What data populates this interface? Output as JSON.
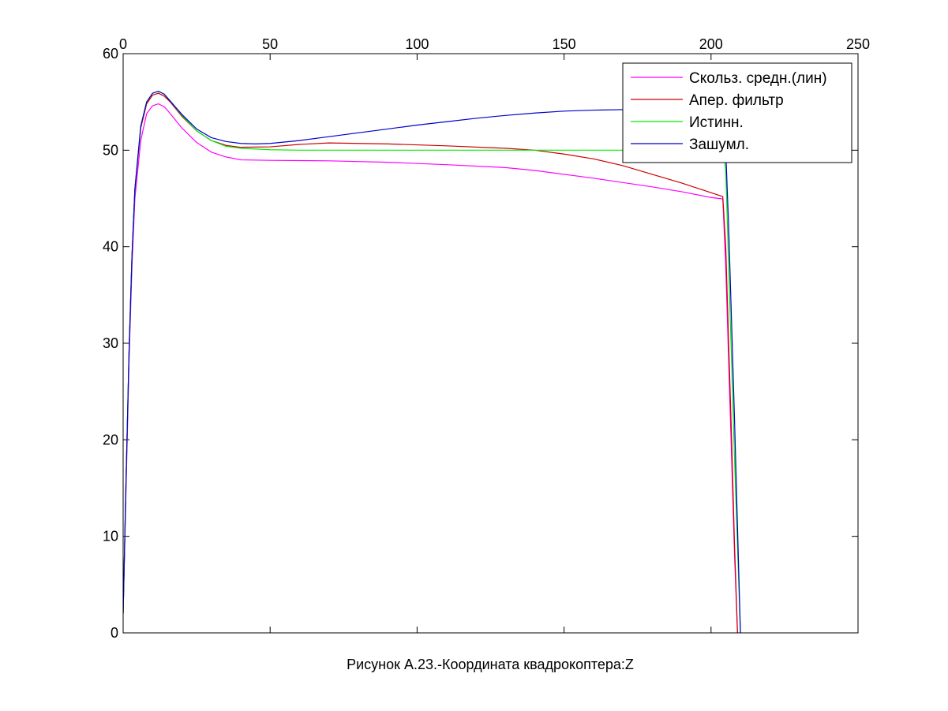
{
  "chart_data": {
    "type": "line",
    "title": "",
    "caption": "Рисунок А.23.-Координата квадрокоптера:Z",
    "xlabel": "",
    "ylabel": "",
    "xlim": [
      0,
      250
    ],
    "ylim": [
      0,
      60
    ],
    "x_ticks": [
      0,
      50,
      100,
      150,
      200,
      250
    ],
    "y_ticks": [
      0,
      10,
      20,
      30,
      40,
      50,
      60
    ],
    "x_tick_position": "top",
    "grid": false,
    "legend_position": "top-right",
    "series": [
      {
        "name": "Скольз. средн.(лин)",
        "color": "#ff00ff",
        "points": [
          [
            0,
            2
          ],
          [
            1,
            15
          ],
          [
            2,
            28
          ],
          [
            3,
            38
          ],
          [
            4,
            45
          ],
          [
            6,
            51
          ],
          [
            8,
            53.8
          ],
          [
            10,
            54.6
          ],
          [
            12,
            54.8
          ],
          [
            14,
            54.5
          ],
          [
            16,
            53.8
          ],
          [
            20,
            52.3
          ],
          [
            25,
            50.8
          ],
          [
            30,
            49.8
          ],
          [
            35,
            49.3
          ],
          [
            40,
            49.0
          ],
          [
            50,
            48.95
          ],
          [
            70,
            48.9
          ],
          [
            90,
            48.75
          ],
          [
            110,
            48.5
          ],
          [
            130,
            48.2
          ],
          [
            140,
            47.9
          ],
          [
            160,
            47.1
          ],
          [
            180,
            46.2
          ],
          [
            190,
            45.7
          ],
          [
            200,
            45.1
          ],
          [
            204,
            44.95
          ],
          [
            205,
            38
          ],
          [
            206,
            28
          ],
          [
            207,
            18
          ],
          [
            208,
            8
          ],
          [
            209,
            0
          ]
        ]
      },
      {
        "name": "Апер. фильтр",
        "color": "#cc0000",
        "points": [
          [
            0,
            2
          ],
          [
            1,
            16
          ],
          [
            2,
            29
          ],
          [
            3,
            39
          ],
          [
            4,
            46
          ],
          [
            6,
            52.3
          ],
          [
            8,
            54.8
          ],
          [
            10,
            55.7
          ],
          [
            12,
            55.9
          ],
          [
            14,
            55.6
          ],
          [
            16,
            55.0
          ],
          [
            20,
            53.5
          ],
          [
            25,
            52.0
          ],
          [
            30,
            51.0
          ],
          [
            35,
            50.5
          ],
          [
            40,
            50.3
          ],
          [
            50,
            50.35
          ],
          [
            60,
            50.6
          ],
          [
            70,
            50.75
          ],
          [
            90,
            50.65
          ],
          [
            110,
            50.45
          ],
          [
            130,
            50.2
          ],
          [
            140,
            50.0
          ],
          [
            150,
            49.6
          ],
          [
            160,
            49.1
          ],
          [
            170,
            48.4
          ],
          [
            180,
            47.5
          ],
          [
            190,
            46.6
          ],
          [
            200,
            45.6
          ],
          [
            204,
            45.2
          ],
          [
            205,
            40
          ],
          [
            206,
            30
          ],
          [
            207,
            20
          ],
          [
            208,
            9
          ],
          [
            209,
            0
          ]
        ]
      },
      {
        "name": "Истинн.",
        "color": "#00ee00",
        "points": [
          [
            0,
            2
          ],
          [
            1,
            16
          ],
          [
            2,
            29
          ],
          [
            3,
            39
          ],
          [
            4,
            46
          ],
          [
            6,
            52.5
          ],
          [
            8,
            55.0
          ],
          [
            10,
            55.9
          ],
          [
            12,
            56.1
          ],
          [
            14,
            55.8
          ],
          [
            16,
            55.1
          ],
          [
            20,
            53.6
          ],
          [
            25,
            52.0
          ],
          [
            30,
            51.0
          ],
          [
            35,
            50.4
          ],
          [
            40,
            50.2
          ],
          [
            50,
            50.05
          ],
          [
            60,
            50.0
          ],
          [
            100,
            50.0
          ],
          [
            150,
            50.0
          ],
          [
            200,
            50.0
          ],
          [
            204,
            50.0
          ],
          [
            205,
            48
          ],
          [
            206,
            38
          ],
          [
            207,
            28
          ],
          [
            208,
            18
          ],
          [
            209,
            9
          ],
          [
            210,
            0
          ]
        ]
      },
      {
        "name": "Зашумл.",
        "color": "#0000cc",
        "points": [
          [
            0,
            2
          ],
          [
            1,
            16
          ],
          [
            2,
            29
          ],
          [
            3,
            39
          ],
          [
            4,
            46
          ],
          [
            6,
            52.5
          ],
          [
            8,
            55.0
          ],
          [
            10,
            55.9
          ],
          [
            12,
            56.1
          ],
          [
            14,
            55.8
          ],
          [
            16,
            55.1
          ],
          [
            20,
            53.7
          ],
          [
            25,
            52.2
          ],
          [
            30,
            51.3
          ],
          [
            35,
            50.9
          ],
          [
            40,
            50.7
          ],
          [
            45,
            50.65
          ],
          [
            50,
            50.7
          ],
          [
            60,
            51.0
          ],
          [
            70,
            51.4
          ],
          [
            80,
            51.8
          ],
          [
            90,
            52.2
          ],
          [
            100,
            52.6
          ],
          [
            110,
            52.95
          ],
          [
            120,
            53.3
          ],
          [
            130,
            53.6
          ],
          [
            140,
            53.85
          ],
          [
            150,
            54.05
          ],
          [
            160,
            54.15
          ],
          [
            170,
            54.2
          ],
          [
            180,
            54.2
          ],
          [
            190,
            54.1
          ],
          [
            200,
            54.0
          ],
          [
            204,
            54.0
          ],
          [
            205,
            50
          ],
          [
            206,
            42
          ],
          [
            207,
            32
          ],
          [
            208,
            22
          ],
          [
            209,
            11
          ],
          [
            210,
            0
          ]
        ]
      }
    ]
  }
}
